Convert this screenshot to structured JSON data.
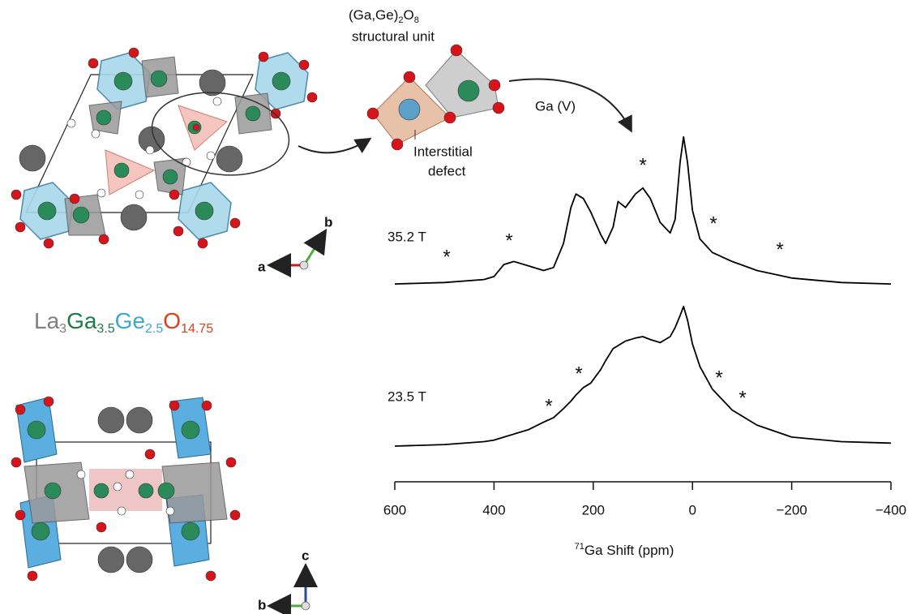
{
  "structure": {
    "unit_label": {
      "main": "(Ga,Ge)",
      "sub1": "2",
      "mid": "O",
      "sub2": "8",
      "line2": "structural unit"
    },
    "site_label": "Ga (V)",
    "defect_label": [
      "Interstitial",
      "defect"
    ],
    "formula": [
      {
        "text": "La",
        "sub": "3",
        "color": "#808080"
      },
      {
        "text": "Ga",
        "sub": "3.5",
        "color": "#1e7a4a"
      },
      {
        "text": "Ge",
        "sub": "2.5",
        "color": "#3aa8d0"
      },
      {
        "text": "O",
        "sub": "14.75",
        "color": "#e03c1e"
      }
    ],
    "axes_top": [
      "a",
      "b"
    ],
    "axes_bottom": [
      "b",
      "c"
    ]
  },
  "chart_data": {
    "type": "line",
    "xlabel": {
      "sup": "71",
      "text": "Ga Shift (ppm)"
    },
    "xlim": [
      600,
      -400
    ],
    "xticks": [
      600,
      400,
      200,
      0,
      {
        "value": -200,
        "label": "−200"
      },
      {
        "value": -400,
        "label": "−400"
      }
    ],
    "x": [
      600,
      500,
      420,
      400,
      380,
      360,
      330,
      300,
      280,
      260,
      245,
      235,
      220,
      205,
      185,
      175,
      160,
      150,
      135,
      115,
      100,
      85,
      65,
      45,
      35,
      25,
      18,
      10,
      0,
      -15,
      -40,
      -80,
      -130,
      -200,
      -300,
      -400
    ],
    "series": [
      {
        "name": "35.2 T",
        "color": "#000000",
        "values": [
          0.01,
          0.02,
          0.04,
          0.06,
          0.14,
          0.16,
          0.13,
          0.1,
          0.12,
          0.28,
          0.52,
          0.61,
          0.58,
          0.49,
          0.34,
          0.28,
          0.39,
          0.56,
          0.52,
          0.61,
          0.65,
          0.58,
          0.42,
          0.35,
          0.44,
          0.82,
          0.99,
          0.82,
          0.5,
          0.31,
          0.22,
          0.16,
          0.1,
          0.05,
          0.02,
          0.01
        ]
      },
      {
        "name": "23.5 T",
        "color": "#000000",
        "values": [
          0,
          0.01,
          0.03,
          0.04,
          0.06,
          0.08,
          0.11,
          0.16,
          0.19,
          0.25,
          0.3,
          0.34,
          0.39,
          0.42,
          0.51,
          0.57,
          0.65,
          0.67,
          0.7,
          0.72,
          0.73,
          0.71,
          0.69,
          0.73,
          0.79,
          0.87,
          0.93,
          0.84,
          0.68,
          0.53,
          0.38,
          0.24,
          0.14,
          0.06,
          0.03,
          0.02
        ]
      }
    ],
    "sideband_markers": [
      "*",
      "*",
      "*",
      "*",
      "*",
      "*",
      "*",
      "*",
      "*"
    ]
  }
}
